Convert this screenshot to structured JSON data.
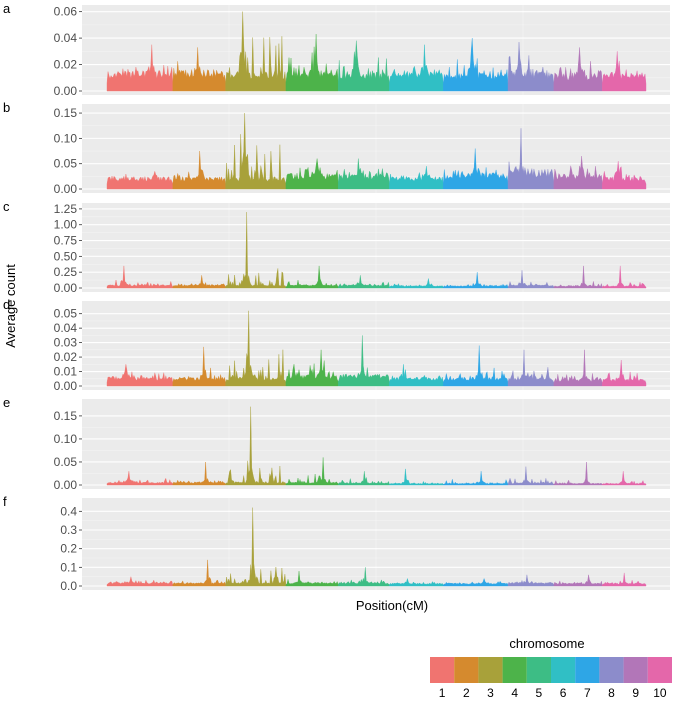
{
  "chart_data": {
    "type": "area",
    "description_free": true,
    "ylabel": "Average count",
    "xlabel": "Position(cM)",
    "legend": {
      "title": "chromosome",
      "position": "bottom-right",
      "entries": [
        "1",
        "2",
        "3",
        "4",
        "5",
        "6",
        "7",
        "8",
        "9",
        "10"
      ]
    },
    "chromosome_colors": [
      "#f07470",
      "#d58a2e",
      "#a8a13a",
      "#4db34a",
      "#3dbd85",
      "#30bfc5",
      "#2ea6e6",
      "#8c8ccb",
      "#b276b8",
      "#e467aa"
    ],
    "panels": [
      {
        "label": "a",
        "ylim": [
          0,
          0.062
        ],
        "yticks": [
          "0.00",
          "0.02",
          "0.04",
          "0.06"
        ],
        "ytick_values": [
          0,
          0.02,
          0.04,
          0.06
        ],
        "series": [
          {
            "chromosome": "1",
            "baseline": 0.012,
            "typical_max": 0.022,
            "peak": 0.035
          },
          {
            "chromosome": "2",
            "baseline": 0.013,
            "typical_max": 0.02,
            "peak": 0.033
          },
          {
            "chromosome": "3",
            "baseline": 0.012,
            "typical_max": 0.045,
            "peak": 0.06
          },
          {
            "chromosome": "4",
            "baseline": 0.013,
            "typical_max": 0.03,
            "peak": 0.043
          },
          {
            "chromosome": "5",
            "baseline": 0.012,
            "typical_max": 0.028,
            "peak": 0.038
          },
          {
            "chromosome": "6",
            "baseline": 0.012,
            "typical_max": 0.025,
            "peak": 0.035
          },
          {
            "chromosome": "7",
            "baseline": 0.011,
            "typical_max": 0.025,
            "peak": 0.04
          },
          {
            "chromosome": "8",
            "baseline": 0.012,
            "typical_max": 0.03,
            "peak": 0.037
          },
          {
            "chromosome": "9",
            "baseline": 0.011,
            "typical_max": 0.025,
            "peak": 0.033
          },
          {
            "chromosome": "10",
            "baseline": 0.011,
            "typical_max": 0.022,
            "peak": 0.03
          }
        ]
      },
      {
        "label": "b",
        "ylim": [
          0,
          0.16
        ],
        "yticks": [
          "0.00",
          "0.05",
          "0.10",
          "0.15"
        ],
        "ytick_values": [
          0,
          0.05,
          0.1,
          0.15
        ],
        "series": [
          {
            "chromosome": "1",
            "baseline": 0.02,
            "typical_max": 0.03,
            "peak": 0.035
          },
          {
            "chromosome": "2",
            "baseline": 0.02,
            "typical_max": 0.04,
            "peak": 0.075
          },
          {
            "chromosome": "3",
            "baseline": 0.02,
            "typical_max": 0.1,
            "peak": 0.15
          },
          {
            "chromosome": "4",
            "baseline": 0.025,
            "typical_max": 0.05,
            "peak": 0.06
          },
          {
            "chromosome": "5",
            "baseline": 0.025,
            "typical_max": 0.045,
            "peak": 0.06
          },
          {
            "chromosome": "6",
            "baseline": 0.02,
            "typical_max": 0.035,
            "peak": 0.045
          },
          {
            "chromosome": "7",
            "baseline": 0.025,
            "typical_max": 0.05,
            "peak": 0.08
          },
          {
            "chromosome": "8",
            "baseline": 0.03,
            "typical_max": 0.06,
            "peak": 0.12
          },
          {
            "chromosome": "9",
            "baseline": 0.025,
            "typical_max": 0.045,
            "peak": 0.065
          },
          {
            "chromosome": "10",
            "baseline": 0.02,
            "typical_max": 0.04,
            "peak": 0.055
          }
        ]
      },
      {
        "label": "c",
        "ylim": [
          0,
          1.28
        ],
        "yticks": [
          "0.00",
          "0.25",
          "0.50",
          "0.75",
          "1.00",
          "1.25"
        ],
        "ytick_values": [
          0,
          0.25,
          0.5,
          0.75,
          1.0,
          1.25
        ],
        "series": [
          {
            "chromosome": "1",
            "baseline": 0.04,
            "typical_max": 0.12,
            "peak": 0.35
          },
          {
            "chromosome": "2",
            "baseline": 0.04,
            "typical_max": 0.1,
            "peak": 0.2
          },
          {
            "chromosome": "3",
            "baseline": 0.04,
            "typical_max": 0.3,
            "peak": 1.2
          },
          {
            "chromosome": "4",
            "baseline": 0.04,
            "typical_max": 0.15,
            "peak": 0.35
          },
          {
            "chromosome": "5",
            "baseline": 0.04,
            "typical_max": 0.1,
            "peak": 0.2
          },
          {
            "chromosome": "6",
            "baseline": 0.03,
            "typical_max": 0.08,
            "peak": 0.15
          },
          {
            "chromosome": "7",
            "baseline": 0.03,
            "typical_max": 0.1,
            "peak": 0.25
          },
          {
            "chromosome": "8",
            "baseline": 0.04,
            "typical_max": 0.12,
            "peak": 0.28
          },
          {
            "chromosome": "9",
            "baseline": 0.03,
            "typical_max": 0.1,
            "peak": 0.35
          },
          {
            "chromosome": "10",
            "baseline": 0.03,
            "typical_max": 0.12,
            "peak": 0.35
          }
        ]
      },
      {
        "label": "d",
        "ylim": [
          0,
          0.056
        ],
        "yticks": [
          "0.00",
          "0.01",
          "0.02",
          "0.03",
          "0.04",
          "0.05"
        ],
        "ytick_values": [
          0,
          0.01,
          0.02,
          0.03,
          0.04,
          0.05
        ],
        "series": [
          {
            "chromosome": "1",
            "baseline": 0.005,
            "typical_max": 0.01,
            "peak": 0.015
          },
          {
            "chromosome": "2",
            "baseline": 0.005,
            "typical_max": 0.013,
            "peak": 0.027
          },
          {
            "chromosome": "3",
            "baseline": 0.005,
            "typical_max": 0.03,
            "peak": 0.052
          },
          {
            "chromosome": "4",
            "baseline": 0.006,
            "typical_max": 0.015,
            "peak": 0.025
          },
          {
            "chromosome": "5",
            "baseline": 0.006,
            "typical_max": 0.015,
            "peak": 0.035
          },
          {
            "chromosome": "6",
            "baseline": 0.005,
            "typical_max": 0.01,
            "peak": 0.015
          },
          {
            "chromosome": "7",
            "baseline": 0.005,
            "typical_max": 0.012,
            "peak": 0.028
          },
          {
            "chromosome": "8",
            "baseline": 0.005,
            "typical_max": 0.012,
            "peak": 0.025
          },
          {
            "chromosome": "9",
            "baseline": 0.004,
            "typical_max": 0.01,
            "peak": 0.025
          },
          {
            "chromosome": "10",
            "baseline": 0.004,
            "typical_max": 0.01,
            "peak": 0.018
          }
        ]
      },
      {
        "label": "e",
        "ylim": [
          0,
          0.178
        ],
        "yticks": [
          "0.00",
          "0.05",
          "0.10",
          "0.15"
        ],
        "ytick_values": [
          0,
          0.05,
          0.1,
          0.15
        ],
        "series": [
          {
            "chromosome": "1",
            "baseline": 0.005,
            "typical_max": 0.015,
            "peak": 0.03
          },
          {
            "chromosome": "2",
            "baseline": 0.005,
            "typical_max": 0.015,
            "peak": 0.05
          },
          {
            "chromosome": "3",
            "baseline": 0.005,
            "typical_max": 0.05,
            "peak": 0.17
          },
          {
            "chromosome": "4",
            "baseline": 0.005,
            "typical_max": 0.025,
            "peak": 0.06
          },
          {
            "chromosome": "5",
            "baseline": 0.004,
            "typical_max": 0.015,
            "peak": 0.03
          },
          {
            "chromosome": "6",
            "baseline": 0.003,
            "typical_max": 0.01,
            "peak": 0.035
          },
          {
            "chromosome": "7",
            "baseline": 0.003,
            "typical_max": 0.012,
            "peak": 0.03
          },
          {
            "chromosome": "8",
            "baseline": 0.004,
            "typical_max": 0.015,
            "peak": 0.04
          },
          {
            "chromosome": "9",
            "baseline": 0.003,
            "typical_max": 0.012,
            "peak": 0.05
          },
          {
            "chromosome": "10",
            "baseline": 0.003,
            "typical_max": 0.012,
            "peak": 0.03
          }
        ]
      },
      {
        "label": "f",
        "ylim": [
          0,
          0.45
        ],
        "yticks": [
          "0.0",
          "0.1",
          "0.2",
          "0.3",
          "0.4"
        ],
        "ytick_values": [
          0,
          0.1,
          0.2,
          0.3,
          0.4
        ],
        "series": [
          {
            "chromosome": "1",
            "baseline": 0.015,
            "typical_max": 0.03,
            "peak": 0.05
          },
          {
            "chromosome": "2",
            "baseline": 0.015,
            "typical_max": 0.05,
            "peak": 0.14
          },
          {
            "chromosome": "3",
            "baseline": 0.015,
            "typical_max": 0.1,
            "peak": 0.42
          },
          {
            "chromosome": "4",
            "baseline": 0.015,
            "typical_max": 0.04,
            "peak": 0.08
          },
          {
            "chromosome": "5",
            "baseline": 0.015,
            "typical_max": 0.035,
            "peak": 0.1
          },
          {
            "chromosome": "6",
            "baseline": 0.012,
            "typical_max": 0.025,
            "peak": 0.04
          },
          {
            "chromosome": "7",
            "baseline": 0.012,
            "typical_max": 0.025,
            "peak": 0.04
          },
          {
            "chromosome": "8",
            "baseline": 0.015,
            "typical_max": 0.03,
            "peak": 0.06
          },
          {
            "chromosome": "9",
            "baseline": 0.012,
            "typical_max": 0.03,
            "peak": 0.06
          },
          {
            "chromosome": "10",
            "baseline": 0.012,
            "typical_max": 0.03,
            "peak": 0.07
          }
        ]
      }
    ]
  }
}
